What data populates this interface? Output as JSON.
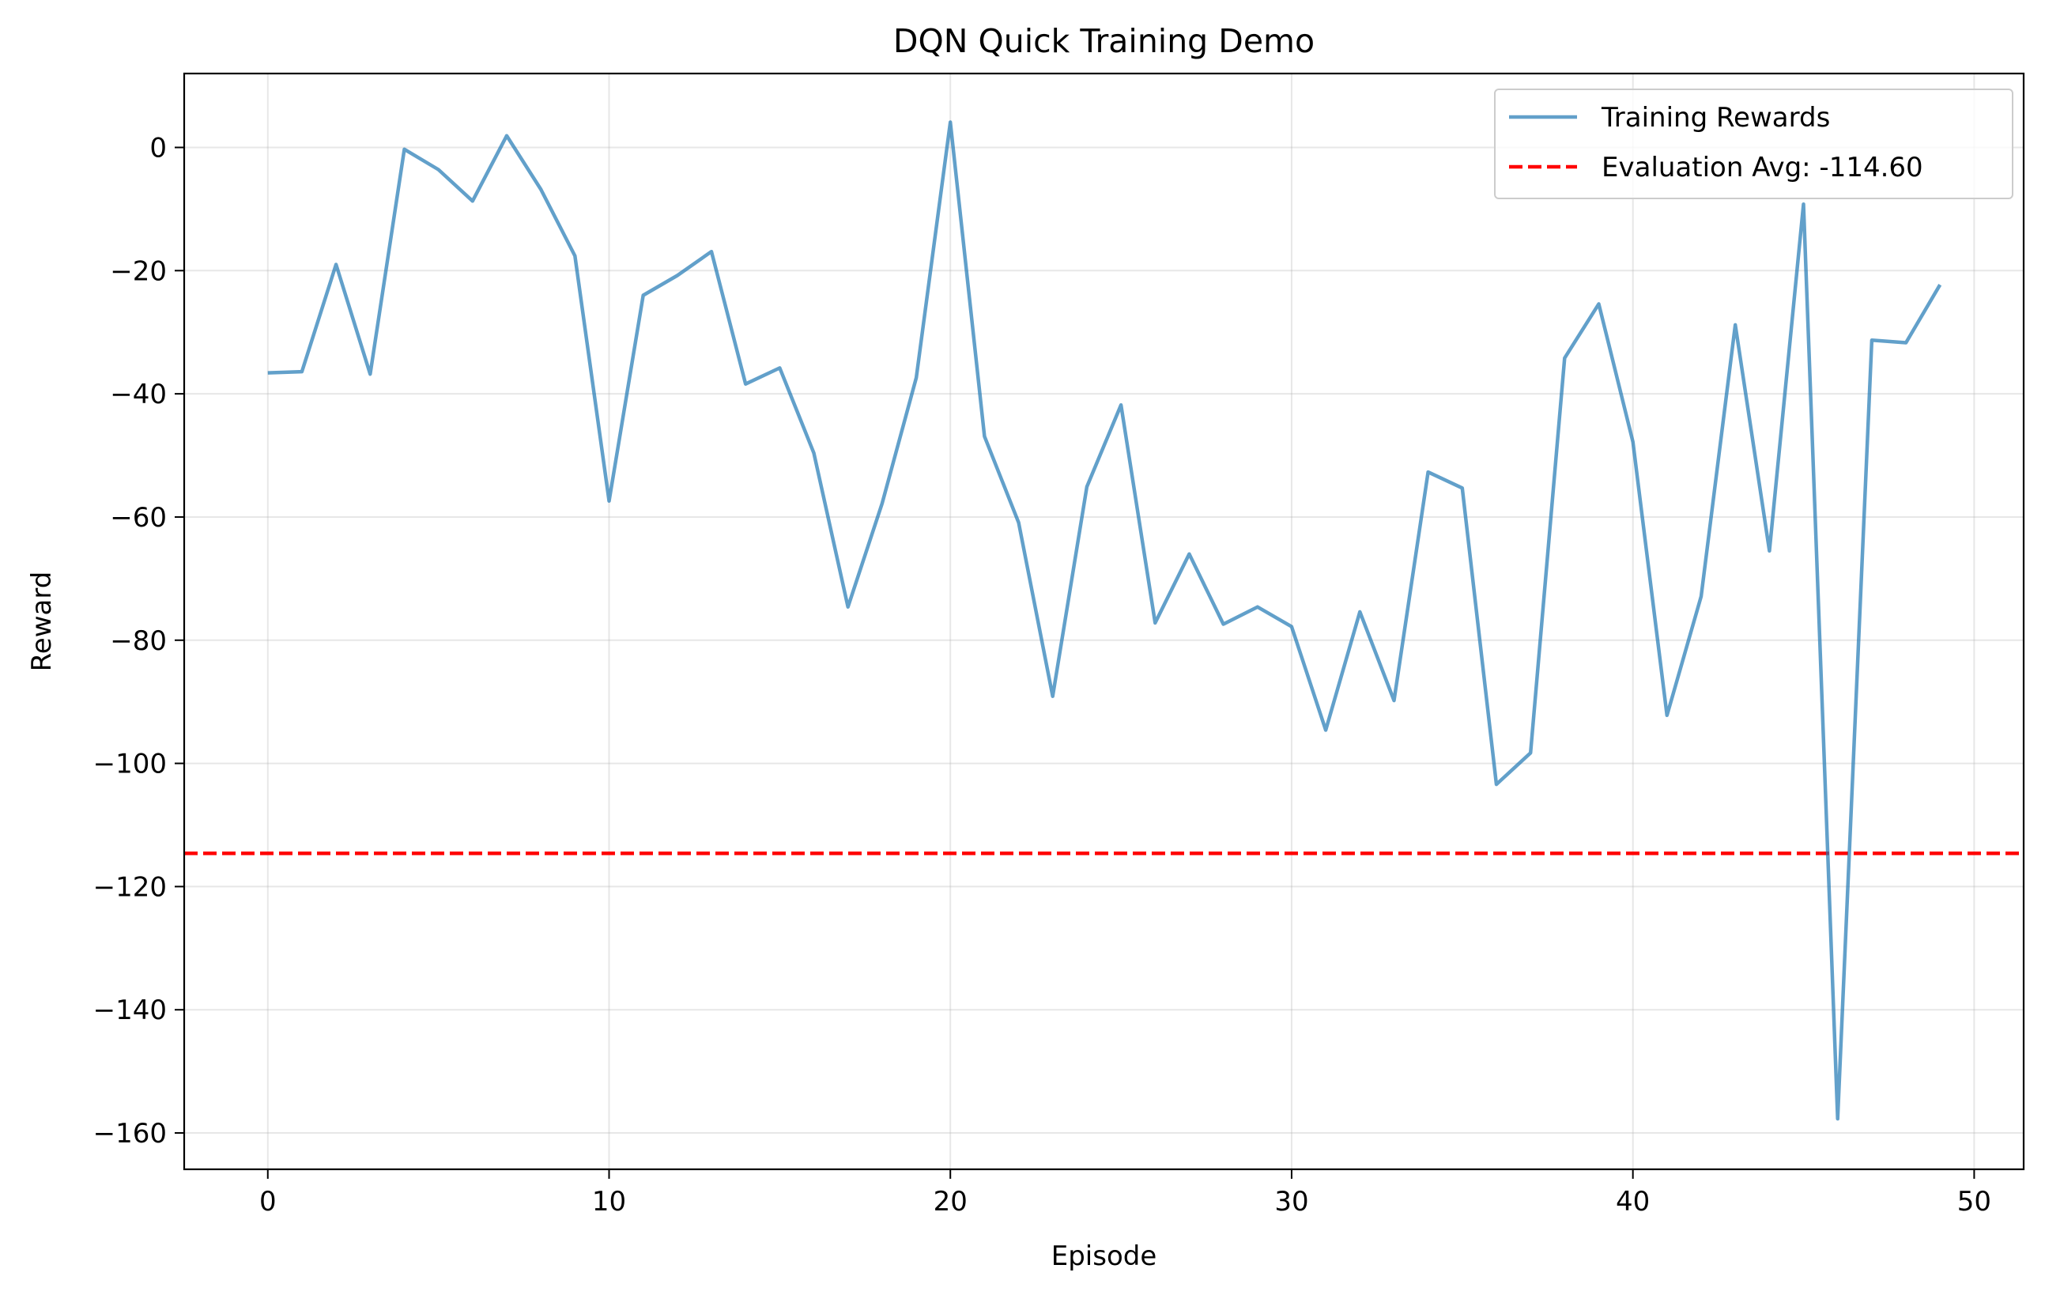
{
  "chart_data": {
    "type": "line",
    "title": "DQN Quick Training Demo",
    "xlabel": "Episode",
    "ylabel": "Reward",
    "xlim": [
      -2.45,
      51.45
    ],
    "ylim": [
      -165.9,
      12.0
    ],
    "xticks": [
      0,
      10,
      20,
      30,
      40,
      50
    ],
    "yticks": [
      0,
      -20,
      -40,
      -60,
      -80,
      -100,
      -120,
      -140,
      -160
    ],
    "grid": true,
    "legend_position": "top-right",
    "series": [
      {
        "name": "Training Rewards",
        "color": "#1f77b4",
        "style": "solid",
        "x": [
          0,
          1,
          2,
          3,
          4,
          5,
          6,
          7,
          8,
          9,
          10,
          11,
          12,
          13,
          14,
          15,
          16,
          17,
          18,
          19,
          20,
          21,
          22,
          23,
          24,
          25,
          26,
          27,
          28,
          29,
          30,
          31,
          32,
          33,
          34,
          35,
          36,
          37,
          38,
          39,
          40,
          41,
          42,
          43,
          44,
          45,
          46,
          47,
          48,
          49
        ],
        "y": [
          -36.6,
          -36.4,
          -19.0,
          -36.8,
          -0.3,
          -3.6,
          -8.7,
          1.9,
          -6.8,
          -17.6,
          -57.4,
          -24.0,
          -20.8,
          -16.9,
          -38.4,
          -35.8,
          -49.6,
          -74.6,
          -57.8,
          -37.4,
          4.1,
          -46.9,
          -60.9,
          -89.1,
          -55.1,
          -41.8,
          -77.2,
          -66.0,
          -77.4,
          -74.6,
          -77.8,
          -94.6,
          -75.4,
          -89.8,
          -52.7,
          -55.3,
          -103.4,
          -98.3,
          -34.2,
          -25.4,
          -47.8,
          -92.2,
          -72.9,
          -28.8,
          -65.5,
          -9.2,
          -157.7,
          -31.3,
          -31.7,
          -22.3
        ]
      }
    ],
    "reference_lines": [
      {
        "name": "Evaluation Avg: -114.60",
        "orientation": "horizontal",
        "y": -114.6,
        "color": "#ff0000",
        "style": "dashed"
      }
    ]
  }
}
